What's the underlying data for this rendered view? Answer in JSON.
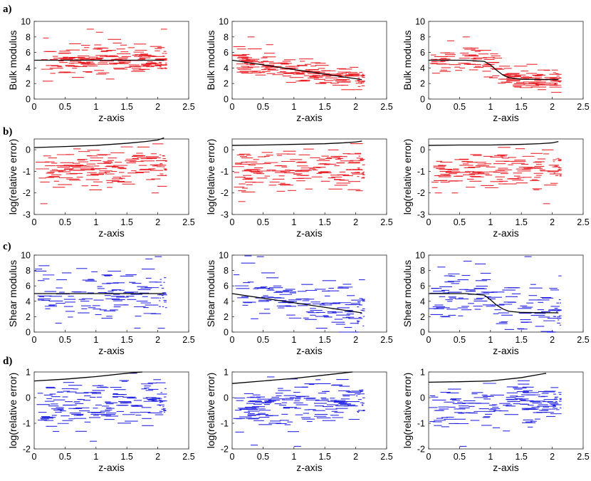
{
  "figure": {
    "row_labels": [
      "a)",
      "b)",
      "c)",
      "d)"
    ]
  },
  "chart_data": [
    {
      "row": 0,
      "col": 0,
      "type": "scatter",
      "xlabel": "z-axis",
      "ylabel": "Bulk modulus",
      "xlim": [
        0,
        2.5
      ],
      "ylim": [
        0,
        10
      ],
      "xticks": [
        0,
        0.5,
        1,
        1.5,
        2,
        2.5
      ],
      "xtick_labels": [
        "0",
        "0.5",
        "1",
        "1.5",
        "2",
        "2.5"
      ],
      "yticks": [
        0,
        2,
        4,
        6,
        8,
        10
      ],
      "ytick_labels": [
        "0",
        "2",
        "4",
        "6",
        "8",
        "10"
      ],
      "color": "#e8141b",
      "reference": {
        "x": [
          0,
          2.1
        ],
        "y": [
          5,
          5
        ]
      },
      "samples": {
        "seed": 11,
        "n": 160,
        "spread": 1.0,
        "outliers": [
          [
            0.85,
            9.0
          ],
          [
            1.0,
            8.6
          ],
          [
            2.05,
            9.0
          ],
          [
            1.95,
            6.5
          ]
        ]
      }
    },
    {
      "row": 0,
      "col": 1,
      "type": "scatter",
      "xlabel": "z-axis",
      "ylabel": "Bulk modulus",
      "xlim": [
        0,
        2.5
      ],
      "ylim": [
        0,
        10
      ],
      "xticks": [
        0,
        0.5,
        1,
        1.5,
        2,
        2.5
      ],
      "xtick_labels": [
        "0",
        "0.5",
        "1",
        "1.5",
        "2",
        "2.5"
      ],
      "yticks": [
        0,
        2,
        4,
        6,
        8,
        10
      ],
      "ytick_labels": [
        "0",
        "2",
        "4",
        "6",
        "8",
        "10"
      ],
      "color": "#e8141b",
      "reference": {
        "x": [
          0,
          2.1
        ],
        "y": [
          5,
          2.5
        ]
      },
      "samples": {
        "seed": 23,
        "n": 160,
        "spread": 0.8,
        "outliers": [
          [
            0.25,
            8.0
          ],
          [
            0.55,
            7.0
          ]
        ]
      }
    },
    {
      "row": 0,
      "col": 2,
      "type": "scatter",
      "xlabel": "z-axis",
      "ylabel": "Bulk modulus",
      "xlim": [
        0,
        2.5
      ],
      "ylim": [
        0,
        10
      ],
      "xticks": [
        0,
        0.5,
        1,
        1.5,
        2,
        2.5
      ],
      "xtick_labels": [
        "0",
        "0.5",
        "1",
        "1.5",
        "2",
        "2.5"
      ],
      "yticks": [
        0,
        2,
        4,
        6,
        8,
        10
      ],
      "ytick_labels": [
        "0",
        "2",
        "4",
        "6",
        "8",
        "10"
      ],
      "color": "#e8141b",
      "reference": {
        "x": [
          0,
          0.6,
          0.9,
          1.0,
          1.1,
          1.2,
          1.3,
          1.5,
          2.1
        ],
        "y": [
          5,
          5,
          4.85,
          4.4,
          3.7,
          3.1,
          2.75,
          2.55,
          2.5
        ]
      },
      "samples": {
        "seed": 37,
        "n": 150,
        "spread": 0.75,
        "outliers": [
          [
            0.55,
            8.0
          ],
          [
            0.3,
            7.5
          ]
        ]
      }
    },
    {
      "row": 1,
      "col": 0,
      "type": "scatter",
      "xlabel": "z-axis",
      "ylabel": "log(relative error)",
      "xlim": [
        0,
        2.5
      ],
      "ylim": [
        -3,
        0.5
      ],
      "xticks": [
        0,
        0.5,
        1,
        1.5,
        2,
        2.5
      ],
      "xtick_labels": [
        "0",
        "0.5",
        "1",
        "1.5",
        "2",
        "2.5"
      ],
      "yticks": [
        -3,
        -2,
        -1,
        0
      ],
      "ytick_labels": [
        "-3",
        "-2",
        "-1",
        "0"
      ],
      "color": "#e8141b",
      "reference": {
        "x": [
          0,
          0.5,
          1.0,
          1.5,
          1.8,
          2.0,
          2.1
        ],
        "y": [
          0.1,
          0.15,
          0.2,
          0.3,
          0.38,
          0.45,
          0.55
        ]
      },
      "samples": {
        "seed": 51,
        "n": 150,
        "spread": 0.45,
        "center": [
          -0.9,
          -0.7
        ],
        "outliers": [
          [
            0.1,
            -2.5
          ],
          [
            1.9,
            -2.0
          ]
        ]
      }
    },
    {
      "row": 1,
      "col": 1,
      "type": "scatter",
      "xlabel": "z-axis",
      "ylabel": "log(relative error)",
      "xlim": [
        0,
        2.5
      ],
      "ylim": [
        -3,
        0.5
      ],
      "xticks": [
        0,
        0.5,
        1,
        1.5,
        2,
        2.5
      ],
      "xtick_labels": [
        "0",
        "0.5",
        "1",
        "1.5",
        "2",
        "2.5"
      ],
      "yticks": [
        -3,
        -2,
        -1,
        0
      ],
      "ytick_labels": [
        "-3",
        "-2",
        "-1",
        "0"
      ],
      "color": "#e8141b",
      "reference": {
        "x": [
          0,
          0.5,
          1.0,
          1.5,
          1.8,
          2.0,
          2.1
        ],
        "y": [
          0.2,
          0.22,
          0.25,
          0.28,
          0.32,
          0.36,
          0.4
        ]
      },
      "samples": {
        "seed": 67,
        "n": 150,
        "spread": 0.45,
        "center": [
          -1.0,
          -0.8
        ],
        "outliers": [
          [
            0.1,
            -2.4
          ],
          [
            2.0,
            -1.9
          ]
        ]
      }
    },
    {
      "row": 1,
      "col": 2,
      "type": "scatter",
      "xlabel": "z-axis",
      "ylabel": "log(relative error)",
      "xlim": [
        0,
        2.5
      ],
      "ylim": [
        -3,
        0.5
      ],
      "xticks": [
        0,
        0.5,
        1,
        1.5,
        2,
        2.5
      ],
      "xtick_labels": [
        "0",
        "0.5",
        "1",
        "1.5",
        "2",
        "2.5"
      ],
      "yticks": [
        -3,
        -2,
        -1,
        0
      ],
      "ytick_labels": [
        "-3",
        "-2",
        "-1",
        "0"
      ],
      "color": "#e8141b",
      "reference": {
        "x": [
          0,
          0.5,
          1.0,
          1.5,
          1.8,
          2.0,
          2.1
        ],
        "y": [
          0.2,
          0.22,
          0.22,
          0.25,
          0.28,
          0.32,
          0.38
        ]
      },
      "samples": {
        "seed": 79,
        "n": 140,
        "spread": 0.45,
        "center": [
          -1.0,
          -0.8
        ],
        "outliers": [
          [
            0.1,
            -2.0
          ],
          [
            1.85,
            -2.5
          ]
        ]
      }
    },
    {
      "row": 2,
      "col": 0,
      "type": "scatter",
      "xlabel": "z-axis",
      "ylabel": "Shear modulus",
      "xlim": [
        0,
        2.5
      ],
      "ylim": [
        0,
        10
      ],
      "xticks": [
        0,
        0.5,
        1,
        1.5,
        2,
        2.5
      ],
      "xtick_labels": [
        "0",
        "0.5",
        "1",
        "1.5",
        "2",
        "2.5"
      ],
      "yticks": [
        0,
        2,
        4,
        6,
        8,
        10
      ],
      "ytick_labels": [
        "0",
        "2",
        "4",
        "6",
        "8",
        "10"
      ],
      "color": "#1414e0",
      "reference": {
        "x": [
          0,
          2.1
        ],
        "y": [
          5,
          5
        ]
      },
      "samples": {
        "seed": 91,
        "n": 110,
        "spread": 1.9,
        "outliers": [
          [
            1.95,
            9.8
          ],
          [
            1.8,
            9.5
          ],
          [
            2.0,
            0.5
          ]
        ]
      }
    },
    {
      "row": 2,
      "col": 1,
      "type": "scatter",
      "xlabel": "z-axis",
      "ylabel": "Shear modulus",
      "xlim": [
        0,
        2.5
      ],
      "ylim": [
        0,
        10
      ],
      "xticks": [
        0,
        0.5,
        1,
        1.5,
        2,
        2.5
      ],
      "xtick_labels": [
        "0",
        "0.5",
        "1",
        "1.5",
        "2",
        "2.5"
      ],
      "yticks": [
        0,
        2,
        4,
        6,
        8,
        10
      ],
      "ytick_labels": [
        "0",
        "2",
        "4",
        "6",
        "8",
        "10"
      ],
      "color": "#1414e0",
      "reference": {
        "x": [
          0,
          2.1
        ],
        "y": [
          5,
          2.5
        ]
      },
      "samples": {
        "seed": 103,
        "n": 120,
        "spread": 1.6,
        "outliers": [
          [
            0.2,
            9.9
          ],
          [
            0.4,
            9.8
          ],
          [
            2.05,
            6.8
          ]
        ]
      }
    },
    {
      "row": 2,
      "col": 2,
      "type": "scatter",
      "xlabel": "z-axis",
      "ylabel": "Shear modulus",
      "xlim": [
        0,
        2.5
      ],
      "ylim": [
        0,
        10
      ],
      "xticks": [
        0,
        0.5,
        1,
        1.5,
        2,
        2.5
      ],
      "xtick_labels": [
        "0",
        "0.5",
        "1",
        "1.5",
        "2",
        "2.5"
      ],
      "yticks": [
        0,
        2,
        4,
        6,
        8,
        10
      ],
      "ytick_labels": [
        "0",
        "2",
        "4",
        "6",
        "8",
        "10"
      ],
      "color": "#1414e0",
      "reference": {
        "x": [
          0,
          0.6,
          0.9,
          1.0,
          1.1,
          1.2,
          1.3,
          1.5,
          2.1
        ],
        "y": [
          5,
          5,
          4.8,
          4.2,
          3.5,
          3.0,
          2.7,
          2.55,
          2.5
        ]
      },
      "samples": {
        "seed": 117,
        "n": 120,
        "spread": 1.6,
        "outliers": [
          [
            1.55,
            9.8
          ],
          [
            2.1,
            7.3
          ]
        ]
      }
    },
    {
      "row": 3,
      "col": 0,
      "type": "scatter",
      "xlabel": "z-axis",
      "ylabel": "log(relative error)",
      "xlim": [
        0,
        2.5
      ],
      "ylim": [
        -2,
        1
      ],
      "xticks": [
        0,
        0.5,
        1,
        1.5,
        2,
        2.5
      ],
      "xtick_labels": [
        "0",
        "0.5",
        "1",
        "1.5",
        "2",
        "2.5"
      ],
      "yticks": [
        -2,
        -1,
        0,
        1
      ],
      "ytick_labels": [
        "-2",
        "-1",
        "0",
        "1"
      ],
      "color": "#1414e0",
      "reference": {
        "x": [
          0,
          0.5,
          1.0,
          1.5,
          1.75
        ],
        "y": [
          0.65,
          0.72,
          0.82,
          0.95,
          1.0
        ]
      },
      "samples": {
        "seed": 131,
        "n": 150,
        "spread": 0.4,
        "center": [
          -0.45,
          -0.1
        ],
        "outliers": [
          [
            0.9,
            -1.7
          ],
          [
            1.55,
            0.95
          ]
        ]
      }
    },
    {
      "row": 3,
      "col": 1,
      "type": "scatter",
      "xlabel": "z-axis",
      "ylabel": "log(relative error)",
      "xlim": [
        0,
        2.5
      ],
      "ylim": [
        -2,
        1
      ],
      "xticks": [
        0,
        0.5,
        1,
        1.5,
        2,
        2.5
      ],
      "xtick_labels": [
        "0",
        "0.5",
        "1",
        "1.5",
        "2",
        "2.5"
      ],
      "yticks": [
        -2,
        -1,
        0,
        1
      ],
      "ytick_labels": [
        "-2",
        "-1",
        "0",
        "1"
      ],
      "color": "#1414e0",
      "reference": {
        "x": [
          0,
          0.5,
          1.0,
          1.5,
          1.95
        ],
        "y": [
          0.55,
          0.65,
          0.75,
          0.88,
          1.0
        ]
      },
      "samples": {
        "seed": 149,
        "n": 150,
        "spread": 0.4,
        "center": [
          -0.45,
          -0.1
        ],
        "outliers": [
          [
            0.3,
            -1.85
          ],
          [
            1.0,
            -1.9
          ]
        ]
      }
    },
    {
      "row": 3,
      "col": 2,
      "type": "scatter",
      "xlabel": "z-axis",
      "ylabel": "log(relative error)",
      "xlim": [
        0,
        2.5
      ],
      "ylim": [
        -2,
        1
      ],
      "xticks": [
        0,
        0.5,
        1,
        1.5,
        2,
        2.5
      ],
      "xtick_labels": [
        "0",
        "0.5",
        "1",
        "1.5",
        "2",
        "2.5"
      ],
      "yticks": [
        -2,
        -1,
        0,
        1
      ],
      "ytick_labels": [
        "-2",
        "-1",
        "0",
        "1"
      ],
      "color": "#1414e0",
      "reference": {
        "x": [
          0,
          0.5,
          1.0,
          1.5,
          1.9
        ],
        "y": [
          0.6,
          0.62,
          0.65,
          0.78,
          0.95
        ]
      },
      "samples": {
        "seed": 163,
        "n": 140,
        "spread": 0.4,
        "center": [
          -0.4,
          -0.2
        ],
        "outliers": [
          [
            0.5,
            -1.9
          ],
          [
            1.2,
            -1.3
          ]
        ]
      }
    }
  ]
}
